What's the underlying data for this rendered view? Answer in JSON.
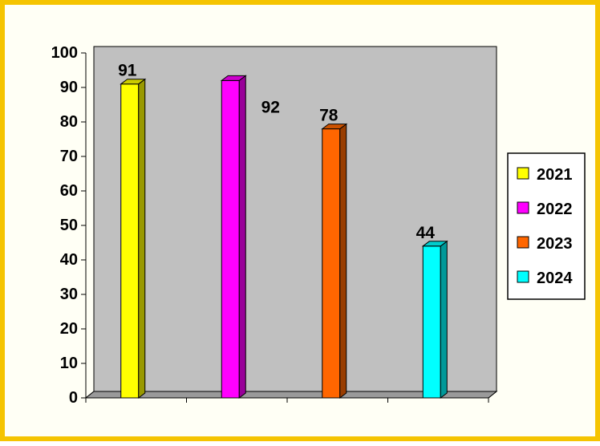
{
  "chart_data": {
    "type": "bar",
    "variant": "3d-column",
    "title": "",
    "xlabel": "",
    "ylabel": "",
    "ylim": [
      0,
      100
    ],
    "y_ticks": [
      0,
      10,
      20,
      30,
      40,
      50,
      60,
      70,
      80,
      90,
      100
    ],
    "grid": false,
    "legend_position": "right",
    "series": [
      {
        "name": "2021",
        "values": [
          91
        ],
        "color": "#ffff00"
      },
      {
        "name": "2022",
        "values": [
          92
        ],
        "color": "#ff00ff"
      },
      {
        "name": "2023",
        "values": [
          78
        ],
        "color": "#ff6600"
      },
      {
        "name": "2024",
        "values": [
          44
        ],
        "color": "#00ffff"
      }
    ],
    "data_labels": [
      "91",
      "92",
      "78",
      "44"
    ]
  },
  "colors": {
    "frame_border": "#f5c400",
    "frame_background": "#fffff5",
    "plot_background": "#c0c0c0"
  }
}
